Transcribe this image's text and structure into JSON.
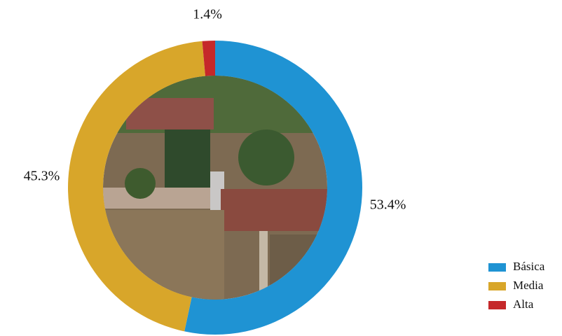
{
  "chart_data": {
    "type": "donut",
    "categories": [
      "Básica",
      "Media",
      "Alta"
    ],
    "values": [
      53.4,
      45.3,
      1.4
    ],
    "value_labels": [
      "53.4%",
      "45.3%",
      "1.4%"
    ],
    "colors": [
      "#1f93d3",
      "#d8a62a",
      "#c5282a"
    ],
    "legend": "bottom-right"
  }
}
